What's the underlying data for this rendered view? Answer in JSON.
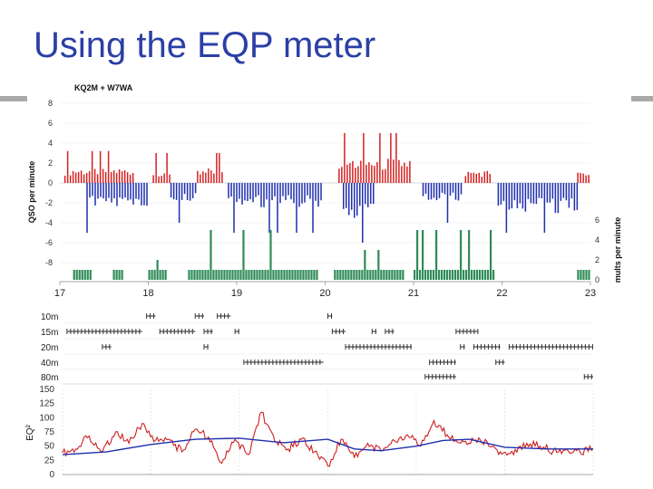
{
  "slide": {
    "title": "Using the EQP meter"
  },
  "colors": {
    "title": "#2b3fa6",
    "rate_positive": "#d42020",
    "rate_negative": "#1f2fae",
    "mults": "#2e8b57",
    "eq2_red": "#cc1f1f",
    "eq2_blue": "#1f2fae",
    "band_marks": "#222222",
    "grid": "#c8c8c8"
  },
  "chart_data": [
    {
      "type": "bar",
      "title": "KQ2M + W7WA",
      "ylabel": "QSO per minute",
      "y2label": "mults per minute",
      "ylim": [
        -8,
        8
      ],
      "y_ticks": [
        "8",
        "6",
        "4",
        "2",
        "0",
        "-2",
        "-4",
        "-6",
        "-8"
      ],
      "y2_ticks": [
        "6",
        "4",
        "2",
        "0"
      ],
      "x_ticks": [
        "17",
        "18",
        "19",
        "20",
        "21",
        "22",
        "23"
      ],
      "xlim": [
        17,
        23
      ],
      "series": [
        {
          "role": "KQ2M QSO rate (up)",
          "color": "#d42020",
          "segments": [
            {
              "from": 17.05,
              "to": 17.82,
              "typical": 1.2,
              "peak": 3.2
            },
            {
              "from": 18.05,
              "to": 18.25,
              "typical": 1.0,
              "peak": 3.0
            },
            {
              "from": 18.55,
              "to": 18.85,
              "typical": 1.2,
              "peak": 3.0
            },
            {
              "from": 20.15,
              "to": 20.95,
              "typical": 2.0,
              "peak": 5.0
            },
            {
              "from": 21.58,
              "to": 21.88,
              "typical": 1.0,
              "peak": 2.0
            },
            {
              "from": 22.85,
              "to": 22.98,
              "typical": 1.0,
              "peak": 2.0
            }
          ]
        },
        {
          "role": "W7WA QSO rate (down)",
          "color": "#1f2fae",
          "segments": [
            {
              "from": 17.3,
              "to": 18.0,
              "typical": -2.0,
              "peak": -5.0
            },
            {
              "from": 18.25,
              "to": 18.55,
              "typical": -1.5,
              "peak": -4.0
            },
            {
              "from": 18.9,
              "to": 19.95,
              "typical": -2.0,
              "peak": -5.0
            },
            {
              "from": 20.2,
              "to": 20.55,
              "typical": -3.0,
              "peak": -6.0
            },
            {
              "from": 21.1,
              "to": 21.55,
              "typical": -1.5,
              "peak": -4.0
            },
            {
              "from": 21.95,
              "to": 22.85,
              "typical": -2.5,
              "peak": -5.0
            }
          ]
        },
        {
          "role": "mults per minute",
          "color": "#2e8b57",
          "segments": [
            {
              "from": 17.15,
              "to": 17.35,
              "typical": 1,
              "peak": 1
            },
            {
              "from": 17.6,
              "to": 17.7,
              "typical": 1,
              "peak": 1
            },
            {
              "from": 18.0,
              "to": 18.2,
              "typical": 1,
              "peak": 2
            },
            {
              "from": 18.45,
              "to": 19.9,
              "typical": 1,
              "peak": 5
            },
            {
              "from": 20.1,
              "to": 20.9,
              "typical": 1,
              "peak": 3
            },
            {
              "from": 21.0,
              "to": 21.9,
              "typical": 1,
              "peak": 5
            },
            {
              "from": 22.85,
              "to": 22.98,
              "typical": 1,
              "peak": 2
            }
          ]
        }
      ]
    },
    {
      "type": "scatter",
      "role": "band activity",
      "xlim": [
        17,
        23
      ],
      "categories": [
        "10m",
        "15m",
        "20m",
        "40m",
        "80m"
      ],
      "runs": {
        "10m": [
          [
            17.95,
            18.05
          ],
          [
            18.5,
            18.6
          ],
          [
            18.75,
            18.9
          ],
          [
            20.0,
            20.05
          ]
        ],
        "15m": [
          [
            17.05,
            17.9
          ],
          [
            18.1,
            18.5
          ],
          [
            18.6,
            18.7
          ],
          [
            18.95,
            19.0
          ],
          [
            20.05,
            20.2
          ],
          [
            20.5,
            20.55
          ],
          [
            20.65,
            20.75
          ],
          [
            21.45,
            21.7
          ]
        ],
        "20m": [
          [
            17.45,
            17.55
          ],
          [
            18.6,
            18.65
          ],
          [
            20.2,
            20.95
          ],
          [
            21.5,
            21.55
          ],
          [
            21.65,
            21.95
          ],
          [
            22.05,
            23.0
          ]
        ],
        "40m": [
          [
            19.05,
            19.95
          ],
          [
            21.15,
            21.45
          ],
          [
            21.9,
            22.0
          ]
        ],
        "80m": [
          [
            21.1,
            21.45
          ],
          [
            22.9,
            23.0
          ]
        ]
      }
    },
    {
      "type": "line",
      "ylabel": "EQ²",
      "ylim": [
        0,
        150
      ],
      "y_ticks": [
        "150",
        "125",
        "100",
        "75",
        "50",
        "25",
        "0"
      ],
      "xlim": [
        17,
        23
      ],
      "series": [
        {
          "role": "EQ² (instantaneous)",
          "color": "#cc1f1f",
          "x": [
            17.0,
            17.15,
            17.3,
            17.45,
            17.6,
            17.75,
            17.9,
            18.05,
            18.2,
            18.35,
            18.5,
            18.65,
            18.8,
            18.95,
            19.1,
            19.25,
            19.4,
            19.55,
            19.7,
            19.85,
            20.0,
            20.15,
            20.3,
            20.45,
            20.6,
            20.75,
            20.9,
            21.05,
            21.2,
            21.35,
            21.5,
            21.65,
            21.8,
            21.95,
            22.1,
            22.25,
            22.4,
            22.55,
            22.7,
            22.85,
            23.0
          ],
          "values": [
            38,
            45,
            68,
            40,
            75,
            55,
            90,
            60,
            62,
            40,
            80,
            66,
            20,
            62,
            35,
            110,
            58,
            45,
            62,
            40,
            15,
            62,
            30,
            55,
            42,
            60,
            70,
            50,
            95,
            70,
            55,
            60,
            58,
            40,
            35,
            55,
            50,
            42,
            45,
            40,
            45
          ]
        },
        {
          "role": "EQ² (average)",
          "color": "#1f2fae",
          "x": [
            17.0,
            17.5,
            18.0,
            18.5,
            19.0,
            19.5,
            20.0,
            20.3,
            20.6,
            21.0,
            21.3,
            21.6,
            22.0,
            22.5,
            23.0
          ],
          "values": [
            35,
            40,
            53,
            62,
            64,
            56,
            62,
            45,
            42,
            50,
            60,
            62,
            48,
            45,
            45
          ]
        }
      ]
    }
  ]
}
